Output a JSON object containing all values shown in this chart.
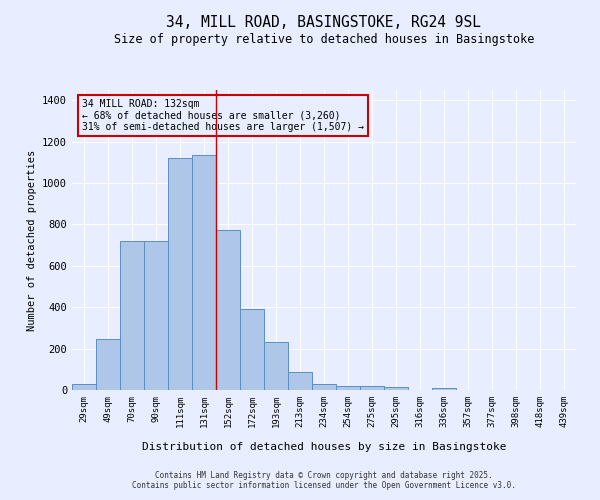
{
  "title1": "34, MILL ROAD, BASINGSTOKE, RG24 9SL",
  "title2": "Size of property relative to detached houses in Basingstoke",
  "xlabel": "Distribution of detached houses by size in Basingstoke",
  "ylabel": "Number of detached properties",
  "categories": [
    "29sqm",
    "49sqm",
    "70sqm",
    "90sqm",
    "111sqm",
    "131sqm",
    "152sqm",
    "172sqm",
    "193sqm",
    "213sqm",
    "234sqm",
    "254sqm",
    "275sqm",
    "295sqm",
    "316sqm",
    "336sqm",
    "357sqm",
    "377sqm",
    "398sqm",
    "418sqm",
    "439sqm"
  ],
  "values": [
    30,
    245,
    720,
    720,
    1120,
    1135,
    775,
    390,
    230,
    88,
    30,
    20,
    20,
    13,
    0,
    10,
    0,
    0,
    0,
    0,
    0
  ],
  "bar_color": "#aec6e8",
  "bar_edge_color": "#5a8fc2",
  "ylim": [
    0,
    1450
  ],
  "yticks": [
    0,
    200,
    400,
    600,
    800,
    1000,
    1200,
    1400
  ],
  "vline_index": 5,
  "vline_color": "#cc0000",
  "annotation_title": "34 MILL ROAD: 132sqm",
  "annotation_line1": "← 68% of detached houses are smaller (3,260)",
  "annotation_line2": "31% of semi-detached houses are larger (1,507) →",
  "annotation_box_color": "#cc0000",
  "background_color": "#e8eeff",
  "grid_color": "#ffffff",
  "footer1": "Contains HM Land Registry data © Crown copyright and database right 2025.",
  "footer2": "Contains public sector information licensed under the Open Government Licence v3.0."
}
